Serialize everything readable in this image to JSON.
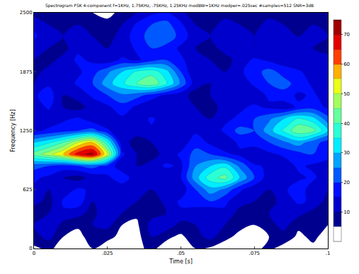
{
  "chart_data": {
    "type": "contour",
    "title": "Spectrogram FSK 4-component f=1KHz, 1.75KHz, .75KHz, 1.25KHz modBW=1KHz modper=.025sec #samples=512 SNR=3dB",
    "x_label": "Time [s]",
    "y_label": "Frequency [Hz]",
    "x": [
      0,
      0.005,
      0.01,
      0.015,
      0.02,
      0.025,
      0.03,
      0.035,
      0.04,
      0.045,
      0.05,
      0.055,
      0.06,
      0.065,
      0.07,
      0.075,
      0.08,
      0.085,
      0.09,
      0.095,
      0.1
    ],
    "y": [
      0,
      125,
      250,
      375,
      500,
      625,
      750,
      875,
      1000,
      1125,
      1250,
      1375,
      1500,
      1625,
      1750,
      1875,
      2000,
      2125,
      2250,
      2375,
      2500
    ],
    "values": [
      [
        4,
        6,
        3,
        2,
        5,
        3,
        2,
        4,
        6,
        3,
        2,
        5,
        4,
        3,
        2,
        4,
        6,
        3,
        2,
        4,
        3
      ],
      [
        8,
        12,
        5,
        3,
        8,
        6,
        4,
        3,
        10,
        6,
        4,
        8,
        12,
        6,
        4,
        3,
        5,
        8,
        4,
        6,
        3
      ],
      [
        10,
        15,
        8,
        6,
        10,
        12,
        5,
        4,
        12,
        14,
        8,
        10,
        15,
        10,
        6,
        5,
        8,
        12,
        6,
        10,
        5
      ],
      [
        6,
        10,
        14,
        12,
        8,
        15,
        10,
        6,
        8,
        10,
        14,
        12,
        10,
        14,
        8,
        6,
        10,
        14,
        12,
        8,
        6
      ],
      [
        12,
        8,
        16,
        18,
        10,
        12,
        14,
        10,
        6,
        12,
        16,
        18,
        20,
        16,
        12,
        10,
        8,
        12,
        16,
        14,
        8
      ],
      [
        14,
        10,
        12,
        16,
        14,
        10,
        12,
        15,
        10,
        14,
        12,
        20,
        28,
        24,
        16,
        12,
        10,
        14,
        18,
        12,
        10
      ],
      [
        16,
        14,
        10,
        8,
        12,
        14,
        18,
        12,
        14,
        10,
        15,
        28,
        38,
        42,
        30,
        20,
        12,
        10,
        14,
        16,
        12
      ],
      [
        22,
        20,
        18,
        20,
        22,
        18,
        12,
        10,
        12,
        16,
        14,
        25,
        30,
        34,
        24,
        16,
        14,
        12,
        16,
        14,
        14
      ],
      [
        42,
        48,
        55,
        68,
        72,
        50,
        16,
        10,
        8,
        12,
        16,
        22,
        20,
        16,
        14,
        10,
        14,
        16,
        18,
        20,
        16
      ],
      [
        30,
        34,
        40,
        50,
        55,
        36,
        12,
        8,
        10,
        14,
        12,
        18,
        14,
        12,
        16,
        18,
        20,
        24,
        28,
        22,
        18
      ],
      [
        14,
        16,
        18,
        20,
        22,
        16,
        10,
        12,
        14,
        10,
        12,
        14,
        12,
        16,
        22,
        20,
        28,
        36,
        44,
        42,
        30
      ],
      [
        10,
        12,
        14,
        16,
        12,
        10,
        14,
        12,
        16,
        12,
        10,
        12,
        10,
        14,
        16,
        20,
        24,
        30,
        36,
        32,
        22
      ],
      [
        12,
        16,
        10,
        8,
        12,
        14,
        18,
        14,
        10,
        12,
        14,
        10,
        8,
        12,
        14,
        16,
        14,
        12,
        16,
        18,
        14
      ],
      [
        14,
        18,
        10,
        12,
        16,
        20,
        24,
        22,
        18,
        14,
        12,
        8,
        10,
        12,
        14,
        12,
        16,
        18,
        14,
        16,
        12
      ],
      [
        10,
        14,
        12,
        16,
        20,
        28,
        34,
        40,
        44,
        36,
        24,
        12,
        10,
        14,
        12,
        16,
        20,
        22,
        18,
        14,
        10
      ],
      [
        8,
        12,
        10,
        14,
        18,
        24,
        30,
        36,
        38,
        32,
        20,
        10,
        12,
        10,
        14,
        18,
        22,
        18,
        16,
        12,
        10
      ],
      [
        10,
        8,
        12,
        16,
        14,
        12,
        16,
        14,
        18,
        20,
        16,
        12,
        10,
        8,
        12,
        16,
        14,
        12,
        10,
        14,
        12
      ],
      [
        12,
        10,
        8,
        14,
        12,
        10,
        12,
        16,
        20,
        18,
        14,
        10,
        8,
        12,
        14,
        10,
        12,
        10,
        12,
        10,
        8
      ],
      [
        16,
        12,
        10,
        12,
        10,
        8,
        12,
        18,
        22,
        24,
        18,
        12,
        10,
        14,
        12,
        10,
        14,
        12,
        10,
        12,
        10
      ],
      [
        14,
        10,
        8,
        10,
        8,
        6,
        10,
        16,
        20,
        22,
        16,
        10,
        8,
        12,
        10,
        8,
        12,
        10,
        8,
        10,
        8
      ],
      [
        8,
        6,
        5,
        6,
        5,
        4,
        6,
        10,
        14,
        16,
        12,
        6,
        5,
        8,
        6,
        5,
        8,
        6,
        5,
        6,
        5
      ]
    ],
    "xlim": [
      0,
      0.1
    ],
    "xticks": [
      0,
      {
        "value": 0.025,
        "label": ".025"
      },
      {
        "value": 0.05,
        "label": ".05"
      },
      {
        "value": 0.075,
        "label": ".075"
      },
      {
        "value": 0.1,
        "label": ".1"
      }
    ],
    "ylim": [
      0,
      2500
    ],
    "yticks": [
      0,
      625,
      1250,
      1875,
      2500
    ],
    "zlim": [
      0,
      75
    ],
    "zticks": [
      10,
      20,
      30,
      40,
      50,
      60,
      70
    ]
  }
}
